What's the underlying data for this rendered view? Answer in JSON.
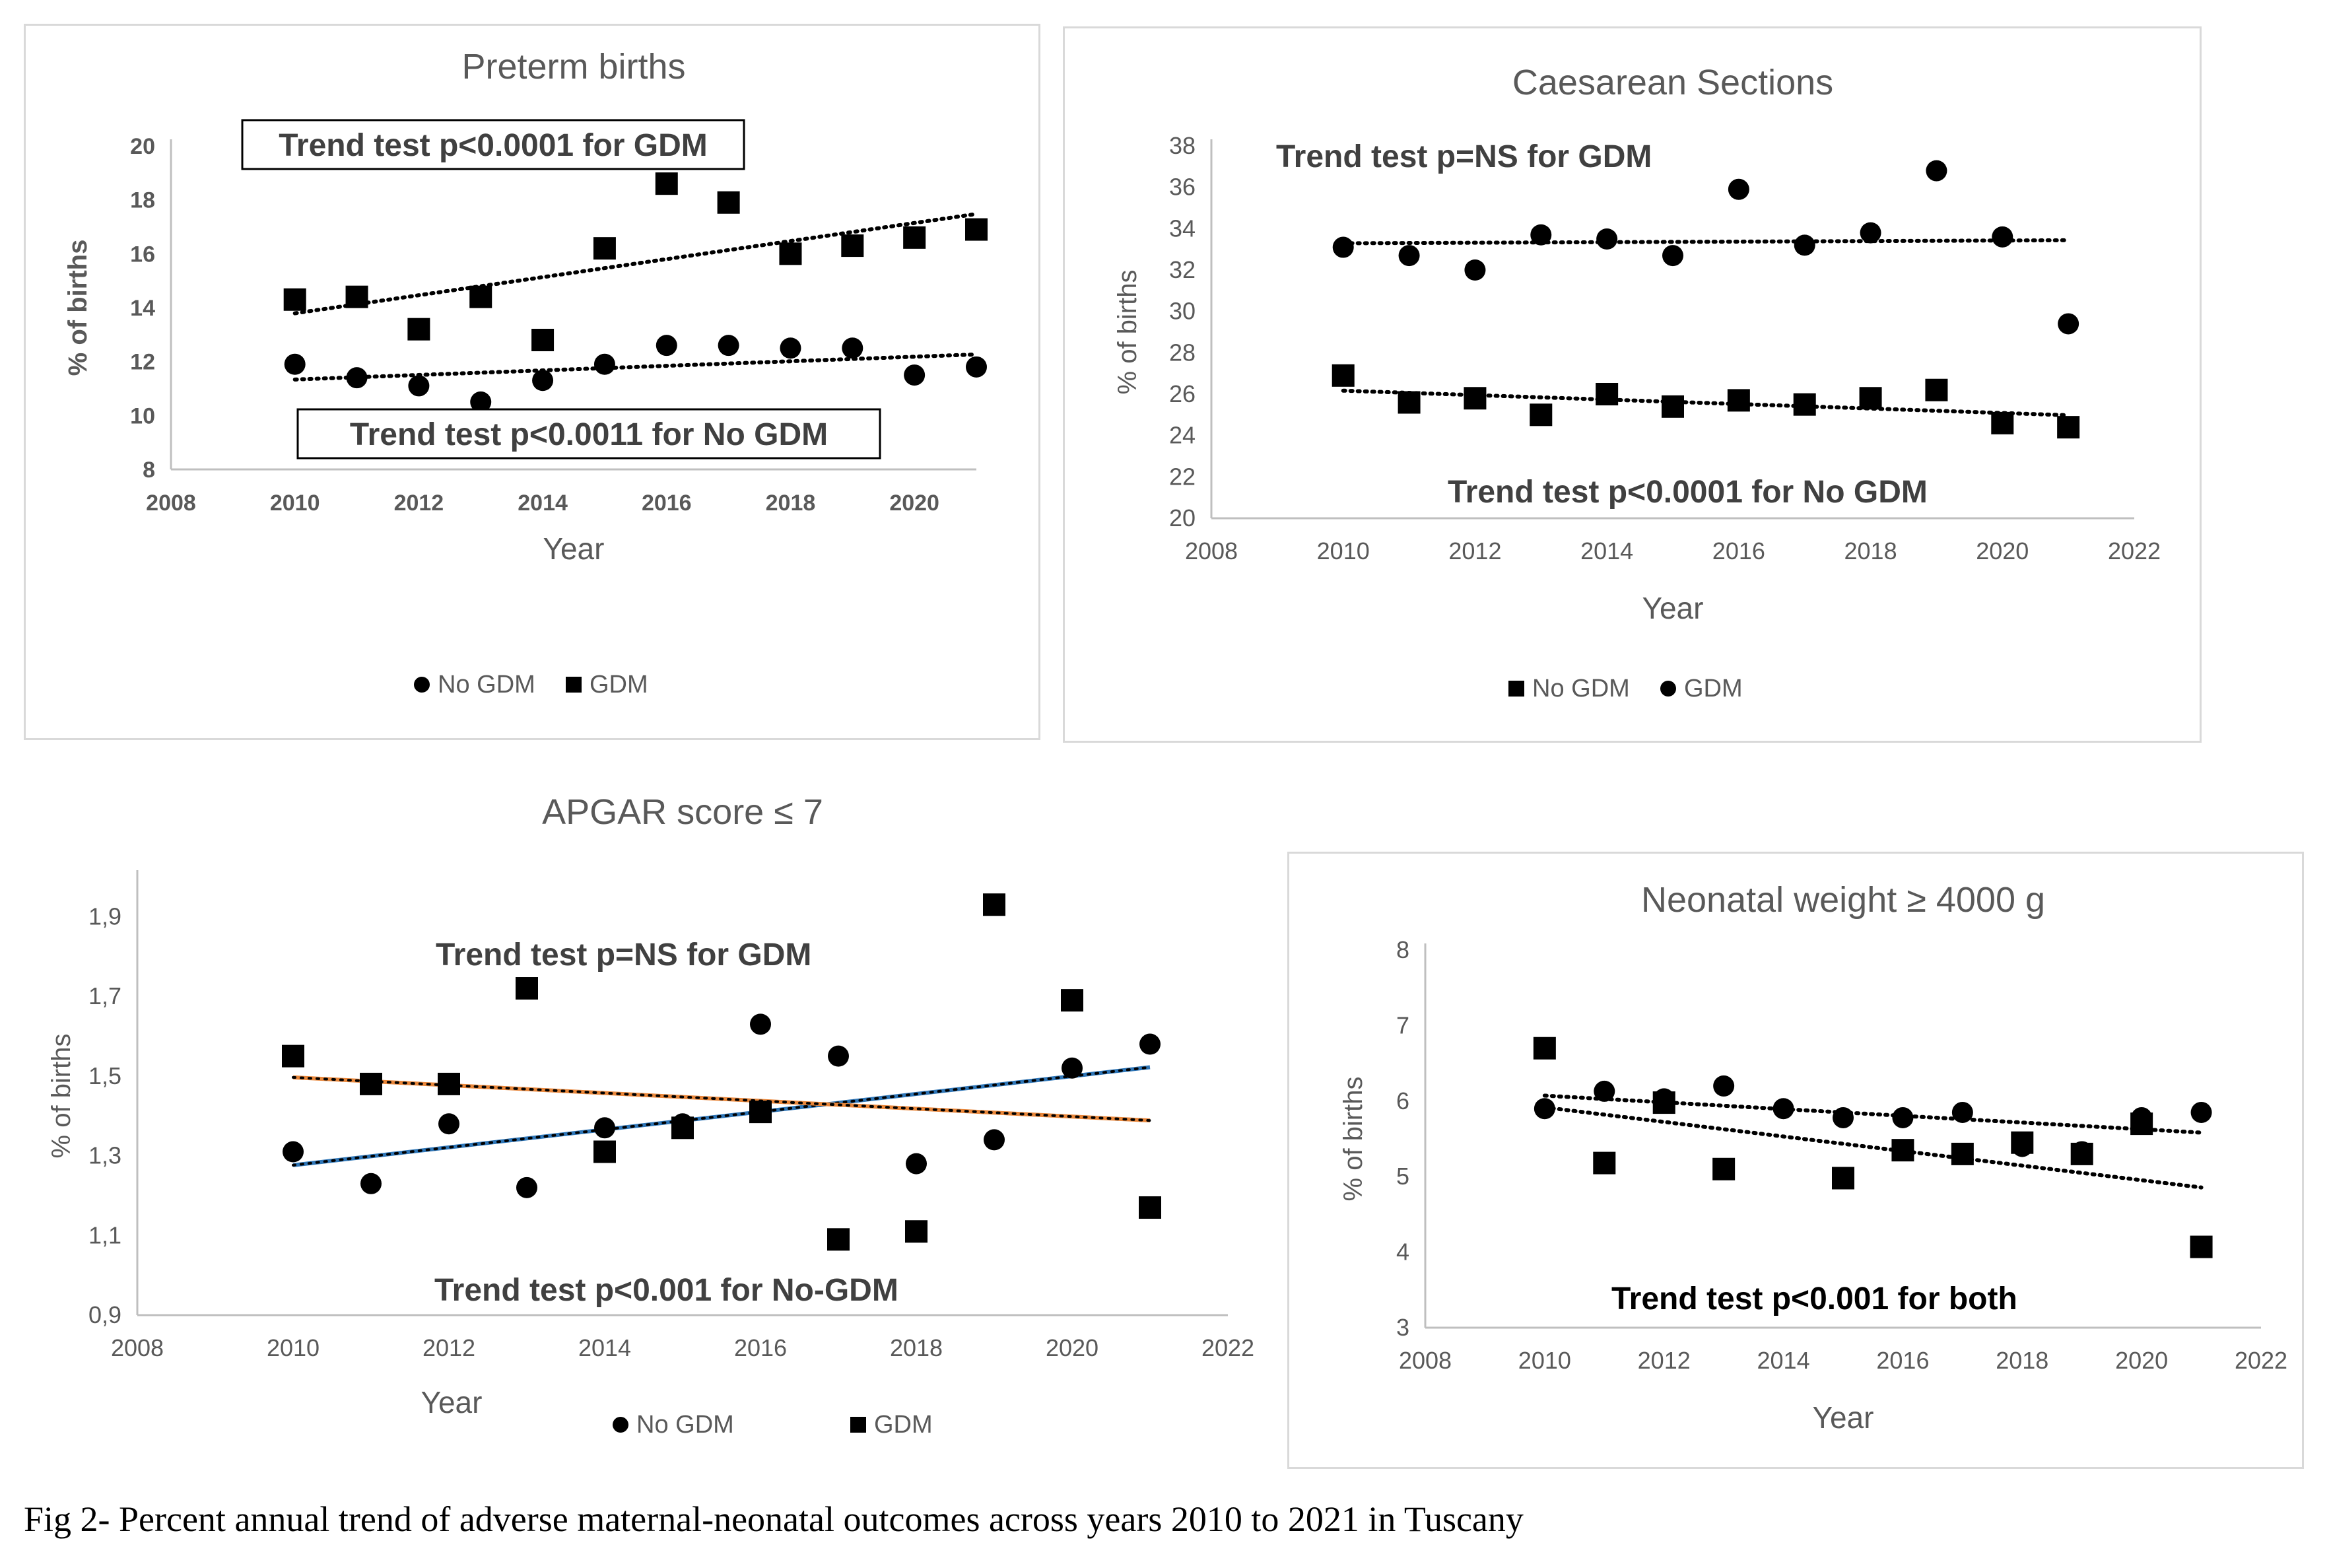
{
  "caption": "Fig 2- Percent annual trend of adverse maternal-neonatal outcomes across years 2010 to 2021 in Tuscany",
  "colors": {
    "marker": "#000000",
    "text": "#595959",
    "axis": "#bfbfbf",
    "annotation": "#404040",
    "frame": "#d9d9d9",
    "trend_gdm_apgar": "#e8863a",
    "trend_nogdm_apgar": "#2e75b6"
  },
  "chart_data": [
    {
      "type": "scatter",
      "title": "Preterm births",
      "xlabel": "Year",
      "ylabel": "% of births",
      "xlim": [
        2008,
        2021
      ],
      "ylim": [
        8,
        20
      ],
      "xticks": [
        2008,
        2010,
        2012,
        2014,
        2016,
        2018,
        2020
      ],
      "yticks": [
        8,
        10,
        12,
        14,
        16,
        18,
        20
      ],
      "grid": false,
      "legend_position": "bottom",
      "legend": [
        "No GDM",
        "GDM"
      ],
      "annotations": [
        "Trend test p<0.0001 for GDM",
        "Trend test p<0.0011 for No GDM"
      ],
      "x": [
        2010,
        2011,
        2012,
        2013,
        2014,
        2015,
        2016,
        2017,
        2018,
        2019,
        2020,
        2021
      ],
      "series": [
        {
          "name": "No GDM",
          "marker": "circle",
          "trendline": true,
          "values": [
            11.9,
            11.4,
            11.1,
            10.5,
            11.3,
            11.9,
            12.6,
            12.6,
            12.5,
            12.5,
            11.5,
            11.8
          ]
        },
        {
          "name": "GDM",
          "marker": "square",
          "trendline": true,
          "values": [
            14.3,
            14.4,
            13.2,
            14.4,
            12.8,
            16.2,
            18.6,
            17.9,
            16.0,
            16.3,
            16.6,
            16.9
          ]
        }
      ]
    },
    {
      "type": "scatter",
      "title": "Caesarean Sections",
      "xlabel": "Year",
      "ylabel": "% of births",
      "xlim": [
        2008,
        2022
      ],
      "ylim": [
        20,
        38
      ],
      "xticks": [
        2008,
        2010,
        2012,
        2014,
        2016,
        2018,
        2020,
        2022
      ],
      "yticks": [
        20,
        22,
        24,
        26,
        28,
        30,
        32,
        34,
        36,
        38
      ],
      "grid": false,
      "legend_position": "bottom",
      "legend": [
        "No GDM",
        "GDM"
      ],
      "annotations": [
        "Trend test p=NS for GDM",
        "Trend test  p<0.0001 for No GDM"
      ],
      "x": [
        2010,
        2011,
        2012,
        2013,
        2014,
        2015,
        2016,
        2017,
        2018,
        2019,
        2020,
        2021
      ],
      "series": [
        {
          "name": "No GDM",
          "marker": "square",
          "trendline": true,
          "values": [
            26.9,
            25.6,
            25.8,
            25.0,
            26.0,
            25.4,
            25.7,
            25.5,
            25.8,
            26.2,
            24.6,
            24.4
          ]
        },
        {
          "name": "GDM",
          "marker": "circle",
          "trendline": true,
          "values": [
            33.1,
            32.7,
            32.0,
            33.7,
            33.5,
            32.7,
            35.9,
            33.2,
            33.8,
            36.8,
            33.6,
            29.4
          ]
        }
      ]
    },
    {
      "type": "scatter",
      "title": "APGAR score ≤ 7",
      "xlabel": "Year",
      "ylabel": "% of births",
      "xlim": [
        2008,
        2022
      ],
      "ylim": [
        0.9,
        2.0
      ],
      "xticks": [
        2008,
        2010,
        2012,
        2014,
        2016,
        2018,
        2020,
        2022
      ],
      "yticks": [
        0.9,
        1.1,
        1.3,
        1.5,
        1.7,
        1.9
      ],
      "ytick_labels": [
        "0,9",
        "1,1",
        "1,3",
        "1,5",
        "1,7",
        "1,9"
      ],
      "grid": false,
      "legend_position": "bottom",
      "legend": [
        "No GDM",
        "GDM"
      ],
      "annotations": [
        "Trend test p=NS for GDM",
        "Trend test p<0.001 for No-GDM"
      ],
      "x": [
        2010,
        2011,
        2012,
        2013,
        2014,
        2015,
        2016,
        2017,
        2018,
        2019,
        2020,
        2021
      ],
      "series": [
        {
          "name": "No GDM",
          "marker": "circle",
          "trendline": true,
          "values": [
            1.31,
            1.23,
            1.38,
            1.22,
            1.37,
            1.38,
            1.63,
            1.55,
            1.28,
            1.34,
            1.52,
            1.58
          ]
        },
        {
          "name": "GDM",
          "marker": "square",
          "trendline": true,
          "values": [
            1.55,
            1.48,
            1.48,
            1.72,
            1.31,
            1.37,
            1.41,
            1.09,
            1.11,
            1.93,
            1.69,
            1.17
          ]
        }
      ]
    },
    {
      "type": "scatter",
      "title": "Neonatal weight ≥ 4000 g",
      "xlabel": "Year",
      "ylabel": "% of births",
      "xlim": [
        2008,
        2022
      ],
      "ylim": [
        3,
        8
      ],
      "xticks": [
        2008,
        2010,
        2012,
        2014,
        2016,
        2018,
        2020,
        2022
      ],
      "yticks": [
        3,
        4,
        5,
        6,
        7,
        8
      ],
      "grid": false,
      "legend_position": "none",
      "annotations": [
        "Trend test p<0.001 for both"
      ],
      "series": [
        {
          "name": "",
          "marker": "circle",
          "trendline": true,
          "x": [
            2010,
            2011,
            2012,
            2013,
            2014,
            2015,
            2016,
            2017,
            2018,
            2019,
            2020,
            2021
          ],
          "values": [
            5.9,
            6.13,
            6.03,
            6.2,
            5.9,
            5.78,
            5.78,
            5.85,
            5.4,
            5.33,
            5.78,
            5.85
          ]
        },
        {
          "name": "",
          "marker": "square",
          "trendline": true,
          "x": [
            2010,
            2011,
            2012,
            2013,
            2015,
            2016,
            2017,
            2018,
            2019,
            2020,
            2021
          ],
          "values": [
            6.7,
            5.18,
            5.98,
            5.1,
            4.98,
            5.35,
            5.3,
            5.45,
            5.3,
            5.7,
            4.07
          ]
        }
      ]
    }
  ]
}
